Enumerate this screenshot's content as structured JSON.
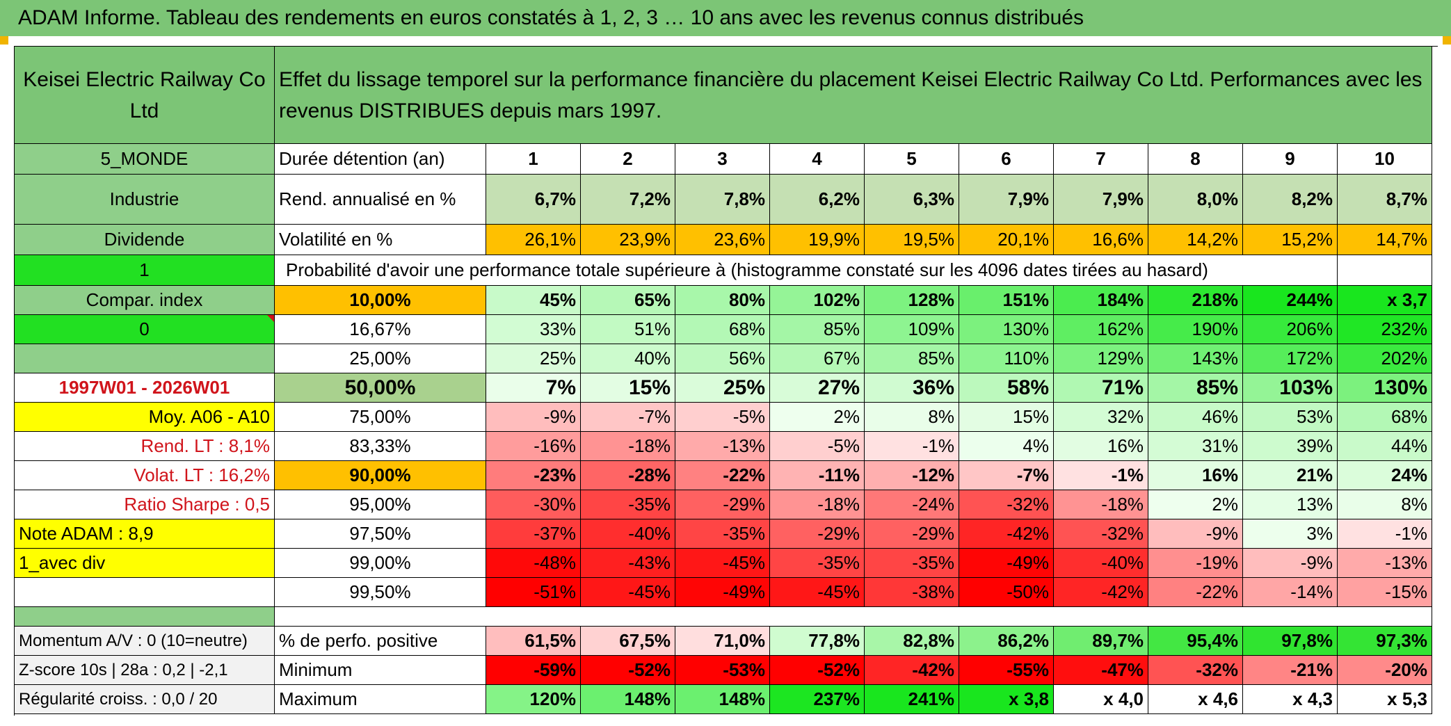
{
  "title": "ADAM Informe. Tableau des rendements en euros constatés à 1, 2, 3 … 10 ans avec les revenus connus distribués",
  "colors": {
    "header_green": "#7cc576",
    "label_green": "#8fcf8a",
    "bright_green": "#22e022",
    "orange": "#ffc000",
    "yellow": "#ffff00",
    "red_text": "#d0141b"
  },
  "header": {
    "fund_name": "Keisei Electric Railway Co Ltd",
    "description": "Effet du lissage temporel sur la performance financière du placement Keisei Electric Railway Co Ltd. Performances avec les revenus DISTRIBUES depuis mars 1997."
  },
  "left_labels": {
    "zone": "5_MONDE",
    "sector": "Industrie",
    "dividend": "Dividende",
    "flag_one": "1",
    "compar": "Compar. index",
    "flag_zero": "0",
    "period": "1997W01 - 2026W01",
    "moy": "Moy. A06 - A10",
    "rend_lt": "Rend. LT :   8,1%",
    "volat_lt": "Volat. LT :   16,2%",
    "sharpe": "Ratio Sharpe :   0,5",
    "note": "Note ADAM : 8,9",
    "avec_div": "1_avec div",
    "momentum": "Momentum A/V : 0 (10=neutre)",
    "zscore": "Z-score 10s | 28a : 0,2 | -2,1",
    "regularite": "Régularité croiss. : 0,0 / 20"
  },
  "row_labels": {
    "duree": "Durée détention (an)",
    "rendement": "Rend. annualisé en %",
    "volatilite": "Volatilité en %",
    "probabilite": "Probabilité d'avoir une performance totale supérieure à (histogramme constaté sur les 4096 dates tirées au hasard)",
    "pct_positive": "% de perfo. positive",
    "minimum": "Minimum",
    "maximum": "Maximum"
  },
  "years": [
    "1",
    "2",
    "3",
    "4",
    "5",
    "6",
    "7",
    "8",
    "9",
    "10"
  ],
  "rendement": [
    "6,7%",
    "7,2%",
    "7,8%",
    "6,2%",
    "6,3%",
    "7,9%",
    "7,9%",
    "8,0%",
    "8,2%",
    "8,7%"
  ],
  "volatilite": [
    "26,1%",
    "23,9%",
    "23,6%",
    "19,9%",
    "19,5%",
    "20,1%",
    "16,6%",
    "14,2%",
    "15,2%",
    "14,7%"
  ],
  "prob_rows": [
    {
      "pct": "10,00%",
      "values": [
        "45%",
        "65%",
        "80%",
        "102%",
        "128%",
        "151%",
        "184%",
        "218%",
        "244%",
        "x 3,7"
      ]
    },
    {
      "pct": "16,67%",
      "values": [
        "33%",
        "51%",
        "68%",
        "85%",
        "109%",
        "130%",
        "162%",
        "190%",
        "206%",
        "232%"
      ]
    },
    {
      "pct": "25,00%",
      "values": [
        "25%",
        "40%",
        "56%",
        "67%",
        "85%",
        "110%",
        "129%",
        "143%",
        "172%",
        "202%"
      ]
    },
    {
      "pct": "50,00%",
      "values": [
        "7%",
        "15%",
        "25%",
        "27%",
        "36%",
        "58%",
        "71%",
        "85%",
        "103%",
        "130%"
      ]
    },
    {
      "pct": "75,00%",
      "values": [
        "-9%",
        "-7%",
        "-5%",
        "2%",
        "8%",
        "15%",
        "32%",
        "46%",
        "53%",
        "68%"
      ]
    },
    {
      "pct": "83,33%",
      "values": [
        "-16%",
        "-18%",
        "-13%",
        "-5%",
        "-1%",
        "4%",
        "16%",
        "31%",
        "39%",
        "44%"
      ]
    },
    {
      "pct": "90,00%",
      "values": [
        "-23%",
        "-28%",
        "-22%",
        "-11%",
        "-12%",
        "-7%",
        "-1%",
        "16%",
        "21%",
        "24%"
      ]
    },
    {
      "pct": "95,00%",
      "values": [
        "-30%",
        "-35%",
        "-29%",
        "-18%",
        "-24%",
        "-32%",
        "-18%",
        "2%",
        "13%",
        "8%"
      ]
    },
    {
      "pct": "97,50%",
      "values": [
        "-37%",
        "-40%",
        "-35%",
        "-29%",
        "-29%",
        "-42%",
        "-32%",
        "-9%",
        "3%",
        "-1%"
      ]
    },
    {
      "pct": "99,00%",
      "values": [
        "-48%",
        "-43%",
        "-45%",
        "-35%",
        "-35%",
        "-49%",
        "-40%",
        "-19%",
        "-9%",
        "-13%"
      ]
    },
    {
      "pct": "99,50%",
      "values": [
        "-51%",
        "-45%",
        "-49%",
        "-45%",
        "-38%",
        "-50%",
        "-42%",
        "-22%",
        "-14%",
        "-15%"
      ]
    }
  ],
  "pct_positive": [
    "61,5%",
    "67,5%",
    "71,0%",
    "77,8%",
    "82,8%",
    "86,2%",
    "89,7%",
    "95,4%",
    "97,8%",
    "97,3%"
  ],
  "minimum": [
    "-59%",
    "-52%",
    "-53%",
    "-52%",
    "-42%",
    "-55%",
    "-47%",
    "-32%",
    "-21%",
    "-20%"
  ],
  "maximum": [
    "120%",
    "148%",
    "148%",
    "237%",
    "241%",
    "x 3,8",
    "x 4,0",
    "x 4,6",
    "x 4,3",
    "x 5,3"
  ]
}
